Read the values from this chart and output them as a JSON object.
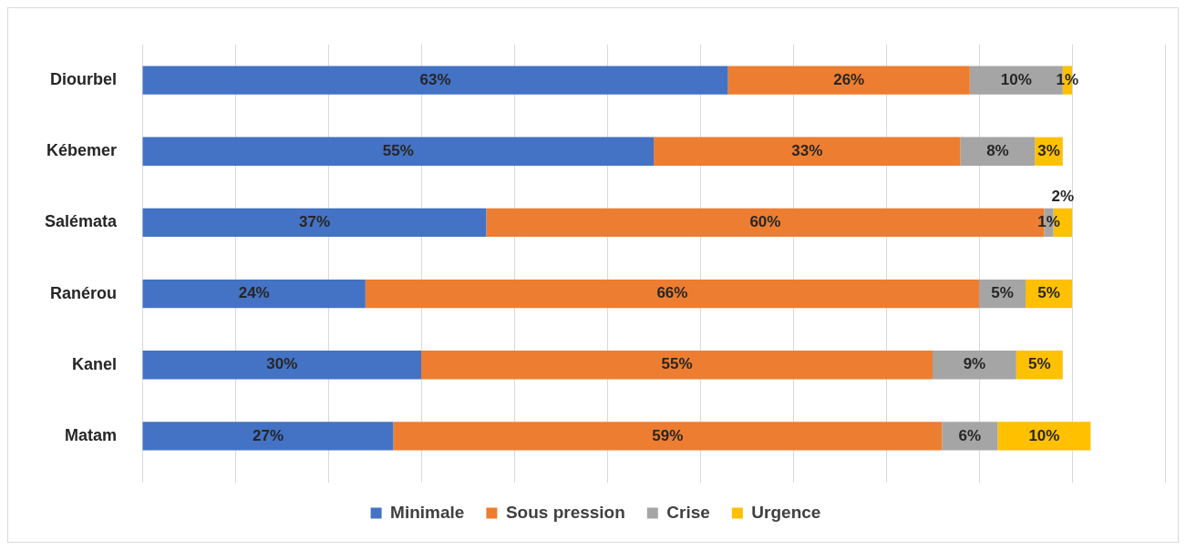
{
  "chart_data": {
    "type": "bar",
    "orientation": "horizontal",
    "stacked": true,
    "categories": [
      "Diourbel",
      "Kébemer",
      "Salémata",
      "Ranérou",
      "Kanel",
      "Matam"
    ],
    "series": [
      {
        "name": "Minimale",
        "color": "#4472c4",
        "values": [
          63,
          55,
          37,
          24,
          30,
          27
        ],
        "value_labels": [
          "63%",
          "55%",
          "37%",
          "24%",
          "30%",
          "27%"
        ]
      },
      {
        "name": "Sous pression",
        "color": "#ed7d31",
        "values": [
          26,
          33,
          60,
          66,
          55,
          59
        ],
        "value_labels": [
          "26%",
          "33%",
          "60%",
          "66%",
          "55%",
          "59%"
        ]
      },
      {
        "name": "Crise",
        "color": "#a5a5a5",
        "values": [
          10,
          8,
          1,
          5,
          9,
          6
        ],
        "value_labels": [
          "10%",
          "8%",
          "1%",
          "5%",
          "9%",
          "6%"
        ]
      },
      {
        "name": "Urgence",
        "color": "#ffc000",
        "values": [
          1,
          3,
          2,
          5,
          5,
          10
        ],
        "value_labels": [
          "1%",
          "3%",
          "2%",
          "5%",
          "5%",
          "10%"
        ]
      }
    ],
    "grid": "x",
    "legend": "bottom",
    "tick_labels": "y"
  }
}
